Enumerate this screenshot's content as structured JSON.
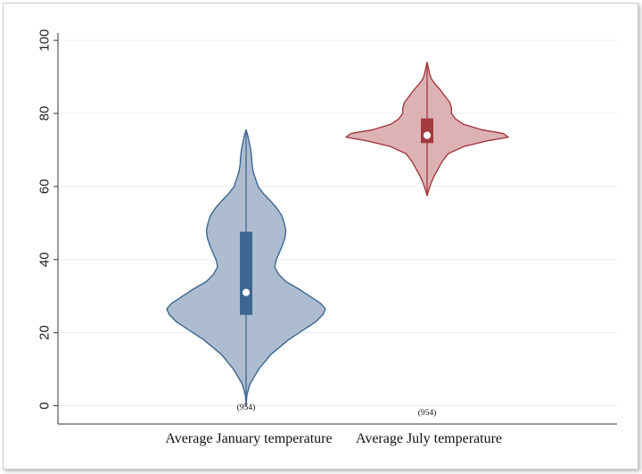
{
  "chart_data": {
    "type": "violin",
    "title": "",
    "xlabel": "",
    "ylabel": "",
    "ylim": [
      -5,
      102
    ],
    "yticks": [
      0,
      20,
      40,
      60,
      80,
      100
    ],
    "grid": true,
    "series": [
      {
        "name": "Average January temperature",
        "count_label": "(954)",
        "color": "#3d6791",
        "fill": "#aebccf",
        "median": 31,
        "q1": 25,
        "q3": 47.5,
        "min": 0,
        "max": 75.5,
        "density": [
          [
            0,
            0.0
          ],
          [
            3,
            0.01
          ],
          [
            6,
            0.05
          ],
          [
            10,
            0.16
          ],
          [
            14,
            0.31
          ],
          [
            18,
            0.53
          ],
          [
            21,
            0.74
          ],
          [
            23,
            0.88
          ],
          [
            25,
            0.97
          ],
          [
            26.5,
            1.0
          ],
          [
            28,
            0.94
          ],
          [
            30,
            0.8
          ],
          [
            32,
            0.66
          ],
          [
            34,
            0.5
          ],
          [
            36,
            0.41
          ],
          [
            38,
            0.36
          ],
          [
            40,
            0.38
          ],
          [
            42,
            0.42
          ],
          [
            44,
            0.46
          ],
          [
            46,
            0.49
          ],
          [
            48,
            0.5
          ],
          [
            50,
            0.48
          ],
          [
            52,
            0.45
          ],
          [
            54,
            0.39
          ],
          [
            56,
            0.31
          ],
          [
            58,
            0.22
          ],
          [
            60,
            0.15
          ],
          [
            62,
            0.12
          ],
          [
            64,
            0.09
          ],
          [
            66,
            0.075
          ],
          [
            68,
            0.07
          ],
          [
            70,
            0.06
          ],
          [
            72,
            0.04
          ],
          [
            74,
            0.02
          ],
          [
            75.5,
            0.0
          ]
        ]
      },
      {
        "name": "Average July temperature",
        "count_label": "(954)",
        "color": "#a33a3f",
        "fill": "#dcb2b5",
        "median": 74,
        "q1": 72,
        "q3": 78.5,
        "min": 57.5,
        "max": 94,
        "density": [
          [
            57.5,
            0.0
          ],
          [
            59,
            0.02
          ],
          [
            61,
            0.05
          ],
          [
            63,
            0.09
          ],
          [
            65,
            0.14
          ],
          [
            67,
            0.19
          ],
          [
            69,
            0.26
          ],
          [
            71,
            0.46
          ],
          [
            72.5,
            0.74
          ],
          [
            73.5,
            1.0
          ],
          [
            74.5,
            0.94
          ],
          [
            75.5,
            0.68
          ],
          [
            77,
            0.45
          ],
          [
            78.5,
            0.35
          ],
          [
            80,
            0.3
          ],
          [
            81.5,
            0.3
          ],
          [
            83,
            0.28
          ],
          [
            85,
            0.21
          ],
          [
            86.5,
            0.16
          ],
          [
            88,
            0.1
          ],
          [
            89.5,
            0.05
          ],
          [
            91,
            0.03
          ],
          [
            92.5,
            0.015
          ],
          [
            94,
            0.0
          ]
        ]
      }
    ]
  }
}
